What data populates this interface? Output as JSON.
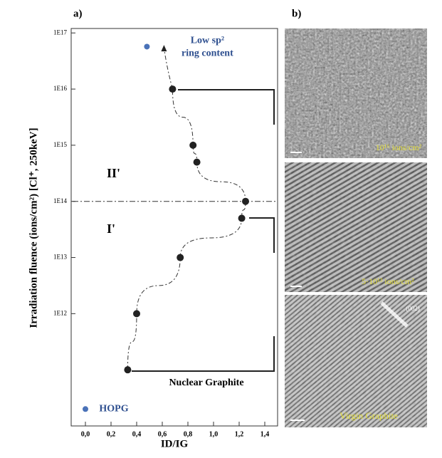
{
  "panel_labels": [
    "a)",
    "b)"
  ],
  "chart_data": {
    "type": "scatter",
    "y_label": "Irradiation fluence (ions/cm²)  [Cl⁺, 250keV]",
    "x_label": "ID/IG",
    "xlim": [
      -0.1,
      1.5
    ],
    "xticks": [
      {
        "value": 0,
        "label": "0,0"
      },
      {
        "value": 0.2,
        "label": "0,2"
      },
      {
        "value": 0.4,
        "label": "0,4"
      },
      {
        "value": 0.6,
        "label": "0,6"
      },
      {
        "value": 0.8,
        "label": "0,8"
      },
      {
        "value": 1.0,
        "label": "1,0"
      },
      {
        "value": 1.2,
        "label": "1,2"
      },
      {
        "value": 1.4,
        "label": "1,4"
      }
    ],
    "ylim": [
      10000000000.0,
      1.2e+17
    ],
    "log_y": true,
    "yticks": [
      {
        "value": 1000000000000.0,
        "label": "1E12"
      },
      {
        "value": 10000000000000.0,
        "label": "1E13"
      },
      {
        "value": 100000000000000.0,
        "label": "1E14"
      },
      {
        "value": 1000000000000000.0,
        "label": "1E15"
      },
      {
        "value": 1e+16,
        "label": "1E16"
      },
      {
        "value": 1e+17,
        "label": "1E17"
      }
    ],
    "series": [
      {
        "color": "#222222",
        "x": [
          0.33,
          0.4,
          0.74,
          1.22,
          1.25,
          0.87,
          0.84,
          0.68
        ],
        "values": [
          100000000000.0,
          1000000000000.0,
          10000000000000.0,
          50000000000000.0,
          100000000000000.0,
          500000000000000.0,
          1000000000000000.0,
          1e+16
        ]
      }
    ],
    "hline": 100000000000000.0,
    "regions": [
      "II'",
      "I'"
    ],
    "annotations": [
      {
        "text": [
          "Low sp²",
          "ring content"
        ],
        "x": 0.48,
        "y": 5.7e+16,
        "color": "#4a72b8"
      },
      {
        "text": [
          "HOPG"
        ],
        "x": 0.0,
        "y": 20000000000.0,
        "color": "#4a72b8"
      }
    ],
    "curve_label": "Nuclear Graphite"
  },
  "images": [
    {
      "label": "10¹⁶ ions/cm²"
    },
    {
      "label": "5·10¹³ ions/cm²"
    },
    {
      "label": "Virgin Graphite",
      "note": "(002)"
    }
  ]
}
